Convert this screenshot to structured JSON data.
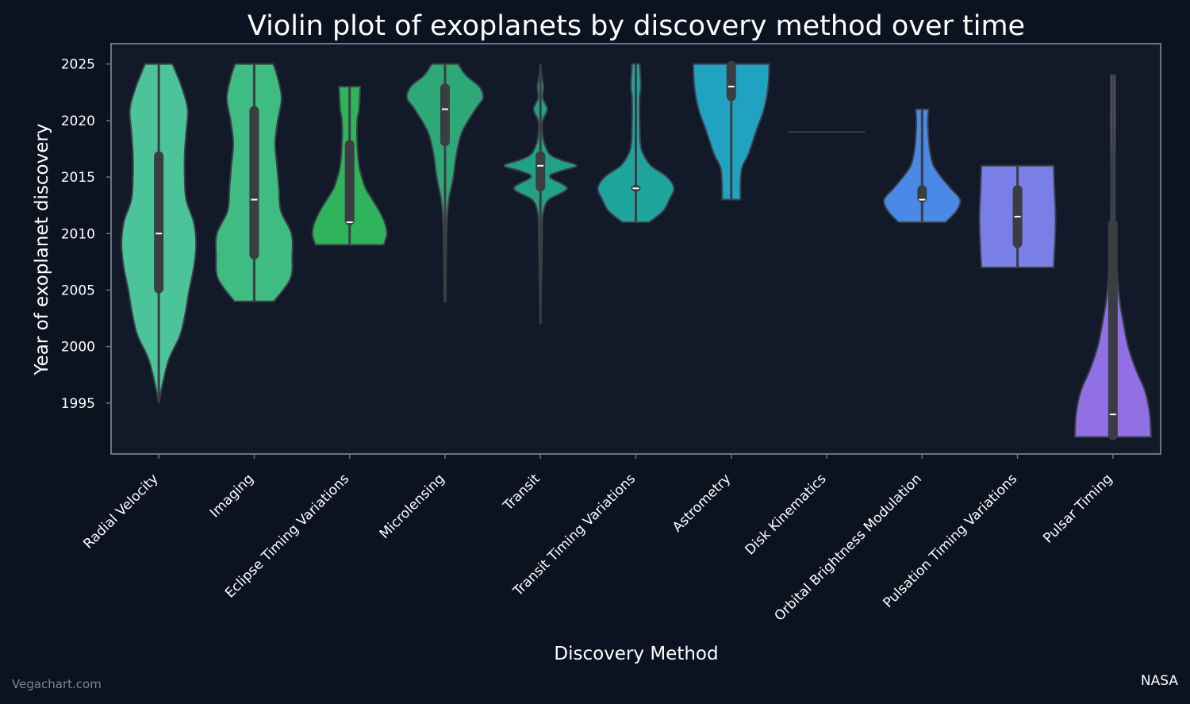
{
  "chart_data": {
    "type": "violin",
    "title": "Violin plot of exoplanets by discovery method over time",
    "xlabel": "Discovery Method",
    "ylabel": "Year of exoplanet discovery",
    "ylim": [
      1990.5,
      2026.8
    ],
    "yticks": [
      1995,
      2000,
      2005,
      2010,
      2015,
      2020,
      2025
    ],
    "grid": false,
    "legend": "none",
    "background": "#0b1220",
    "plot_background": "#121a29",
    "frame_color": "#6b7385",
    "categories": [
      {
        "name": "Radial Velocity",
        "color": "#4cc49a",
        "min": 1995,
        "max": 2025,
        "q1": 2005,
        "median": 2010,
        "q3": 2017,
        "density": [
          [
            1995,
            0.0
          ],
          [
            1997,
            0.12
          ],
          [
            1999,
            0.28
          ],
          [
            2001,
            0.56
          ],
          [
            2003,
            0.7
          ],
          [
            2005,
            0.8
          ],
          [
            2007,
            0.92
          ],
          [
            2009,
            0.98
          ],
          [
            2011,
            0.92
          ],
          [
            2013,
            0.72
          ],
          [
            2015,
            0.68
          ],
          [
            2017,
            0.68
          ],
          [
            2019,
            0.72
          ],
          [
            2021,
            0.76
          ],
          [
            2023,
            0.6
          ],
          [
            2025,
            0.36
          ]
        ]
      },
      {
        "name": "Imaging",
        "color": "#3ebc82",
        "min": 2004,
        "max": 2025,
        "q1": 2008,
        "median": 2013,
        "q3": 2021,
        "density": [
          [
            2004,
            0.52
          ],
          [
            2006,
            0.95
          ],
          [
            2008,
            1.0
          ],
          [
            2010,
            0.98
          ],
          [
            2012,
            0.7
          ],
          [
            2014,
            0.65
          ],
          [
            2016,
            0.6
          ],
          [
            2018,
            0.55
          ],
          [
            2020,
            0.62
          ],
          [
            2022,
            0.72
          ],
          [
            2024,
            0.6
          ],
          [
            2025,
            0.5
          ]
        ]
      },
      {
        "name": "Eclipse Timing Variations",
        "color": "#2fb45c",
        "min": 2009,
        "max": 2023,
        "q1": 2011,
        "median": 2011,
        "q3": 2018,
        "density": [
          [
            2009,
            0.9
          ],
          [
            2010,
            0.98
          ],
          [
            2011,
            0.92
          ],
          [
            2012,
            0.78
          ],
          [
            2013,
            0.6
          ],
          [
            2014,
            0.42
          ],
          [
            2015,
            0.32
          ],
          [
            2016,
            0.25
          ],
          [
            2018,
            0.2
          ],
          [
            2020,
            0.2
          ],
          [
            2021,
            0.25
          ],
          [
            2023,
            0.28
          ]
        ]
      },
      {
        "name": "Microlensing",
        "color": "#2ea876",
        "min": 2004,
        "max": 2025,
        "q1": 2018,
        "median": 2021,
        "q3": 2023,
        "density": [
          [
            2004,
            0.02
          ],
          [
            2008,
            0.03
          ],
          [
            2011,
            0.05
          ],
          [
            2013,
            0.1
          ],
          [
            2015,
            0.22
          ],
          [
            2017,
            0.3
          ],
          [
            2019,
            0.45
          ],
          [
            2021,
            0.8
          ],
          [
            2022,
            1.0
          ],
          [
            2023,
            0.9
          ],
          [
            2024,
            0.55
          ],
          [
            2025,
            0.35
          ]
        ]
      },
      {
        "name": "Transit",
        "color": "#21a284",
        "min": 2002,
        "max": 2025,
        "q1": 2014,
        "median": 2016,
        "q3": 2017,
        "density": [
          [
            2002,
            0.0
          ],
          [
            2005,
            0.02
          ],
          [
            2009,
            0.04
          ],
          [
            2011,
            0.05
          ],
          [
            2012,
            0.08
          ],
          [
            2013,
            0.22
          ],
          [
            2014,
            0.7
          ],
          [
            2015,
            0.25
          ],
          [
            2015.5,
            0.5
          ],
          [
            2016,
            0.95
          ],
          [
            2016.5,
            0.55
          ],
          [
            2017,
            0.25
          ],
          [
            2018,
            0.1
          ],
          [
            2019,
            0.05
          ],
          [
            2020,
            0.06
          ],
          [
            2021,
            0.18
          ],
          [
            2022,
            0.06
          ],
          [
            2023,
            0.08
          ],
          [
            2024,
            0.03
          ],
          [
            2025,
            0.0
          ]
        ]
      },
      {
        "name": "Transit Timing Variations",
        "color": "#1fa39d",
        "min": 2011,
        "max": 2025,
        "q1": 2014,
        "median": 2014,
        "q3": 2014,
        "density": [
          [
            2011,
            0.35
          ],
          [
            2012,
            0.72
          ],
          [
            2013,
            0.88
          ],
          [
            2014,
            1.0
          ],
          [
            2015,
            0.82
          ],
          [
            2016,
            0.4
          ],
          [
            2017,
            0.2
          ],
          [
            2018,
            0.12
          ],
          [
            2020,
            0.1
          ],
          [
            2022,
            0.1
          ],
          [
            2023,
            0.13
          ],
          [
            2025,
            0.1
          ]
        ]
      },
      {
        "name": "Astrometry",
        "color": "#21a2c0",
        "min": 2013,
        "max": 2025,
        "q1": 2022,
        "median": 2023,
        "q3": 2025,
        "density": [
          [
            2013,
            0.24
          ],
          [
            2015,
            0.25
          ],
          [
            2016,
            0.3
          ],
          [
            2017,
            0.45
          ],
          [
            2019,
            0.65
          ],
          [
            2021,
            0.86
          ],
          [
            2023,
            0.97
          ],
          [
            2025,
            1.0
          ]
        ]
      },
      {
        "name": "Disk Kinematics",
        "color": "#3a3f47",
        "min": 2019,
        "max": 2019,
        "q1": 2019,
        "median": 2019,
        "q3": 2019,
        "density": [
          [
            2019,
            1.0
          ]
        ]
      },
      {
        "name": "Orbital Brightness Modulation",
        "color": "#4a8ae6",
        "min": 2011,
        "max": 2021,
        "q1": 2013,
        "median": 2013,
        "q3": 2014,
        "density": [
          [
            2011,
            0.62
          ],
          [
            2012,
            0.9
          ],
          [
            2013,
            1.0
          ],
          [
            2014,
            0.75
          ],
          [
            2015,
            0.5
          ],
          [
            2016,
            0.3
          ],
          [
            2017,
            0.22
          ],
          [
            2018,
            0.18
          ],
          [
            2019,
            0.16
          ],
          [
            2020,
            0.15
          ],
          [
            2021,
            0.17
          ]
        ]
      },
      {
        "name": "Pulsation Timing Variations",
        "color": "#7a7fe8",
        "min": 2007,
        "max": 2016,
        "q1": 2009,
        "median": 2011.5,
        "q3": 2014,
        "density": [
          [
            2007,
            0.95
          ],
          [
            2009,
            0.98
          ],
          [
            2011.5,
            1.0
          ],
          [
            2014,
            0.97
          ],
          [
            2016,
            0.95
          ]
        ]
      },
      {
        "name": "Pulsar Timing",
        "color": "#9170e4",
        "min": 1992,
        "max": 2024,
        "q1": 1992,
        "median": 1994,
        "q3": 2011,
        "density": [
          [
            1992,
            1.0
          ],
          [
            1994,
            0.97
          ],
          [
            1996,
            0.85
          ],
          [
            1998,
            0.6
          ],
          [
            2000,
            0.4
          ],
          [
            2002,
            0.28
          ],
          [
            2004,
            0.18
          ],
          [
            2006,
            0.12
          ],
          [
            2008,
            0.08
          ],
          [
            2010,
            0.06
          ],
          [
            2013,
            0.05
          ],
          [
            2016,
            0.05
          ],
          [
            2019,
            0.06
          ],
          [
            2022,
            0.06
          ],
          [
            2024,
            0.06
          ]
        ]
      }
    ]
  },
  "footer": {
    "source_left": "Vegachart.com",
    "source_right": "NASA"
  }
}
